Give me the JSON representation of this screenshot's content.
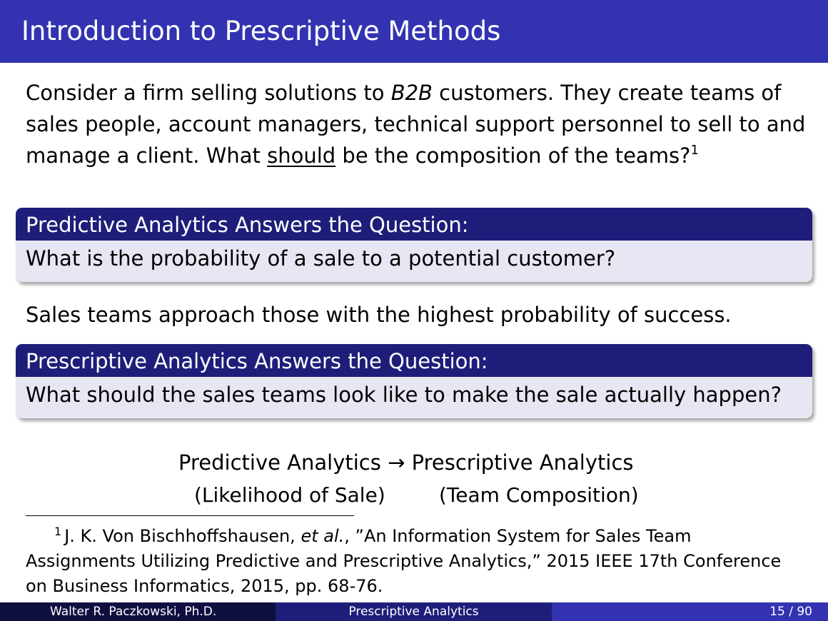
{
  "slide": {
    "title": "Introduction to Prescriptive Methods"
  },
  "intro": {
    "part1": "Consider a firm selling solutions to ",
    "emphasis": "B2B",
    "part2": " customers. They create teams of sales people, account managers, technical support personnel to sell to and manage a client. What ",
    "underlined": "should",
    "part3": " be the composition of the teams?",
    "footnote_mark": "1"
  },
  "predictive_block": {
    "heading": "Predictive Analytics Answers the Question:",
    "body": "What is the probability of a sale to a potential customer?"
  },
  "middle_text": "Sales teams approach those with the highest probability of success.",
  "prescriptive_block": {
    "heading": "Prescriptive Analytics Answers the Question:",
    "body": "What should the sales teams look like to make the sale actually happen?"
  },
  "flow": {
    "from": "Predictive Analytics",
    "arrow": "→",
    "to": "Prescriptive Analytics",
    "from_note": "(Likelihood of Sale)",
    "to_note": "(Team Composition)"
  },
  "footnote": {
    "mark": "1",
    "authors": "J. K. Von Bischhoffshausen, ",
    "etal": "et al.",
    "rest": ", ”An Information System for Sales Team Assignments Utilizing Predictive and Prescriptive Analytics,” 2015 IEEE 17th Conference on Business Informatics, 2015, pp. 68-76."
  },
  "footer": {
    "author": "Walter R. Paczkowski, Ph.D.",
    "topic": "Prescriptive Analytics",
    "page": "15 / 90"
  },
  "colors": {
    "title_bar": "#3333b2",
    "block_header": "#1e1e7a",
    "block_body": "#e7e7f3",
    "footer_dark": "#0f0f40"
  }
}
